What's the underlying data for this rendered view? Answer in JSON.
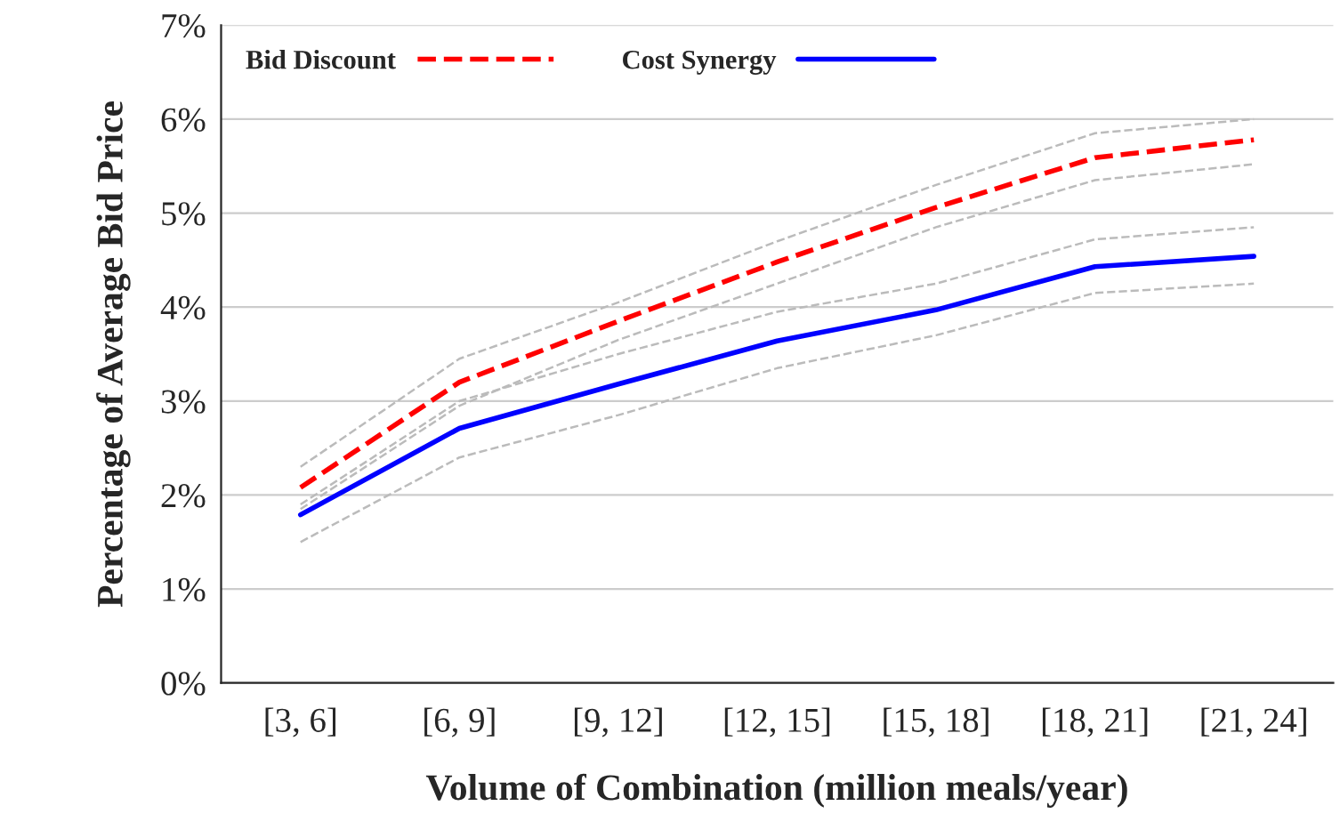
{
  "chart_data": {
    "type": "line",
    "xlabel": "Volume of Combination (million meals/year)",
    "ylabel": "Percentage of Average Bid Price",
    "categories": [
      "[3, 6]",
      "[6, 9]",
      "[9, 12]",
      "[12, 15]",
      "[15, 18]",
      "[18, 21]",
      "[21, 24]"
    ],
    "series": [
      {
        "color": "#bbbbbb",
        "line_style": "dashed",
        "values": [
          1.85,
          2.95,
          3.65,
          4.25,
          4.85,
          5.35,
          5.52
        ]
      },
      {
        "color": "#bbbbbb",
        "line_style": "dashed",
        "values": [
          2.3,
          3.45,
          4.05,
          4.7,
          5.3,
          5.85,
          6.0
        ]
      },
      {
        "color": "#bbbbbb",
        "line_style": "dashed",
        "values": [
          1.5,
          2.4,
          2.85,
          3.35,
          3.7,
          4.15,
          4.25
        ]
      },
      {
        "color": "#bbbbbb",
        "line_style": "dashed",
        "values": [
          1.9,
          3.0,
          3.5,
          3.95,
          4.25,
          4.72,
          4.85
        ]
      },
      {
        "name": "Bid Discount",
        "color": "#ff0000",
        "line_style": "dashed",
        "values": [
          2.08,
          3.2,
          3.85,
          4.48,
          5.06,
          5.59,
          5.78
        ]
      },
      {
        "name": "Cost Synergy",
        "color": "#0000ff",
        "line_style": "solid",
        "values": [
          1.79,
          2.71,
          3.18,
          3.64,
          3.97,
          4.43,
          4.54
        ]
      }
    ],
    "ylim": [
      0,
      7
    ],
    "yticks": [
      {
        "value": 0,
        "label": "0%"
      },
      {
        "value": 1,
        "label": "1%"
      },
      {
        "value": 2,
        "label": "2%"
      },
      {
        "value": 3,
        "label": "3%"
      },
      {
        "value": 4,
        "label": "4%"
      },
      {
        "value": 5,
        "label": "5%"
      },
      {
        "value": 6,
        "label": "6%"
      },
      {
        "value": 7,
        "label": "7%"
      }
    ],
    "grid": "y",
    "legend": "top left",
    "marker": "none"
  }
}
